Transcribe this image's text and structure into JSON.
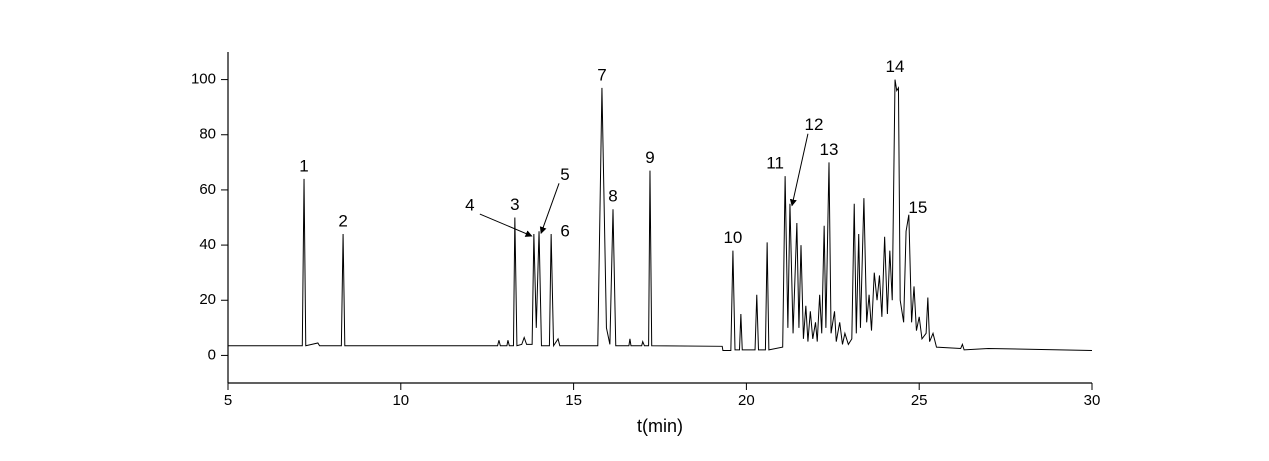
{
  "chart_data": {
    "type": "line",
    "x_label": "t(min)",
    "xlim": [
      5,
      30
    ],
    "xticks": [
      5,
      10,
      15,
      20,
      25,
      30
    ],
    "ylim": [
      -10,
      110
    ],
    "yticks": [
      0,
      20,
      40,
      60,
      80,
      100
    ],
    "grid": false,
    "x": [
      5,
      7.15,
      7.2,
      7.25,
      7.6,
      7.65,
      8.28,
      8.33,
      8.38,
      12.8,
      12.84,
      12.88,
      13.07,
      13.1,
      13.14,
      13.26,
      13.3,
      13.36,
      13.5,
      13.57,
      13.64,
      13.8,
      13.85,
      13.92,
      14.0,
      14.07,
      14.3,
      14.35,
      14.42,
      14.55,
      14.6,
      15.7,
      15.82,
      15.95,
      16.05,
      16.14,
      16.22,
      16.6,
      16.63,
      16.66,
      16.97,
      17.0,
      17.05,
      17.17,
      17.21,
      17.26,
      19.3,
      19.32,
      19.55,
      19.61,
      19.67,
      19.8,
      19.84,
      19.88,
      20.25,
      20.3,
      20.35,
      20.55,
      20.6,
      20.65,
      21.05,
      21.12,
      21.2,
      21.26,
      21.35,
      21.46,
      21.52,
      21.58,
      21.65,
      21.72,
      21.78,
      21.85,
      21.92,
      22.0,
      22.05,
      22.12,
      22.18,
      22.25,
      22.3,
      22.39,
      22.45,
      22.55,
      22.6,
      22.7,
      22.78,
      22.85,
      22.95,
      23.05,
      23.12,
      23.18,
      23.25,
      23.3,
      23.4,
      23.48,
      23.55,
      23.62,
      23.7,
      23.78,
      23.85,
      23.92,
      24.0,
      24.08,
      24.15,
      24.22,
      24.3,
      24.35,
      24.4,
      24.45,
      24.55,
      24.62,
      24.7,
      24.78,
      24.85,
      24.92,
      25.0,
      25.08,
      25.2,
      25.25,
      25.3,
      25.4,
      25.5,
      26.2,
      26.25,
      26.3,
      27.0,
      30.0
    ],
    "series": [
      {
        "color": "#000000",
        "values": [
          3.5,
          3.5,
          64,
          3.5,
          4.5,
          3.5,
          3.5,
          44,
          3.5,
          3.5,
          5.5,
          3.5,
          3.5,
          5.5,
          3.5,
          3.5,
          50,
          3.5,
          4,
          6.5,
          4,
          4,
          44,
          10,
          45,
          3.5,
          3.5,
          44,
          3.5,
          6,
          3.5,
          3.5,
          97,
          10,
          4,
          53,
          3.5,
          3.5,
          6,
          3.5,
          3.5,
          5,
          3.5,
          3.5,
          67,
          3.5,
          3.3,
          1.8,
          1.8,
          38,
          2,
          2,
          15,
          2,
          2,
          22,
          2,
          2,
          41,
          2,
          3,
          65,
          10,
          55,
          8,
          48,
          10,
          40,
          6,
          18,
          5,
          16,
          6,
          12,
          5,
          22,
          8,
          47,
          10,
          70,
          8,
          16,
          5,
          12,
          4,
          8,
          4,
          6,
          55,
          8,
          44,
          10,
          57,
          12,
          22,
          9,
          30,
          20,
          29,
          14,
          43,
          15,
          38,
          20,
          100,
          96,
          97,
          20,
          12,
          45,
          51,
          12,
          25,
          9,
          14,
          6,
          8,
          21,
          5,
          8,
          3,
          2.5,
          4,
          2,
          2.5,
          1.8
        ]
      }
    ],
    "annotations": [
      {
        "text": "1",
        "x": 7.2,
        "y": 64
      },
      {
        "text": "2",
        "x": 8.33,
        "y": 44
      },
      {
        "text": "3",
        "x": 13.3,
        "y": 50
      },
      {
        "text": "4",
        "x": 13.85,
        "y": 44
      },
      {
        "text": "5",
        "x": 14.0,
        "y": 45
      },
      {
        "text": "6",
        "x": 14.35,
        "y": 44
      },
      {
        "text": "7",
        "x": 15.82,
        "y": 97
      },
      {
        "text": "8",
        "x": 16.14,
        "y": 53
      },
      {
        "text": "9",
        "x": 17.21,
        "y": 67
      },
      {
        "text": "10",
        "x": 19.61,
        "y": 38
      },
      {
        "text": "11",
        "x": 21.12,
        "y": 65
      },
      {
        "text": "12",
        "x": 21.26,
        "y": 55
      },
      {
        "text": "13",
        "x": 22.39,
        "y": 70
      },
      {
        "text": "14",
        "x": 24.3,
        "y": 100
      },
      {
        "text": "15",
        "x": 24.7,
        "y": 51
      }
    ]
  }
}
